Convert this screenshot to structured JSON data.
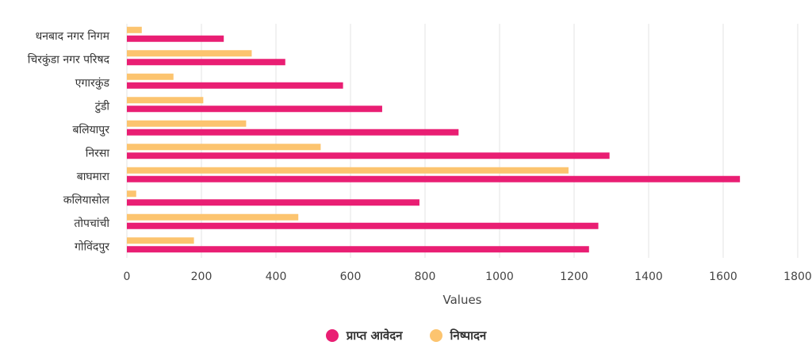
{
  "chart_data": {
    "type": "bar",
    "orientation": "horizontal",
    "categories": [
      "धनबाद नगर निगम",
      "चिरकुंडा नगर परिषद",
      "एगारकुंड",
      "टुंडी",
      "बलियापुर",
      "निरसा",
      "बाघमारा",
      "कलियासोल",
      "तोपचांची",
      "गोविंदपुर"
    ],
    "series": [
      {
        "name": "प्राप्त आवेदन",
        "color": "#e91e73",
        "values": [
          260,
          425,
          580,
          685,
          890,
          1295,
          1645,
          785,
          1265,
          1240
        ]
      },
      {
        "name": "निष्पादन",
        "color": "#fcc46f",
        "values": [
          40,
          335,
          125,
          205,
          320,
          520,
          1185,
          25,
          460,
          180
        ]
      }
    ],
    "xlabel": "Values",
    "xlim": [
      0,
      1800
    ],
    "xticks": [
      "0",
      "200",
      "400",
      "600",
      "800",
      "1000",
      "1200",
      "1400",
      "1600",
      "1800"
    ],
    "grid": true,
    "legend_position": "bottom"
  }
}
